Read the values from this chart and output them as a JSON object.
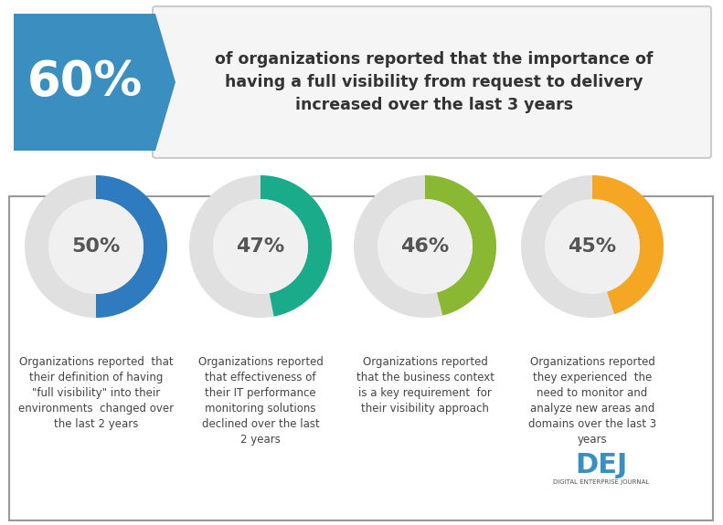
{
  "header_pct": "60%",
  "header_bg": "#3a8fc0",
  "header_text": "of organizations reported that the importance of\nhaving a full visibility from request to delivery\nincreased over the last 3 years",
  "header_text_color": "#333333",
  "donut_data": [
    {
      "pct": 50,
      "value": 50,
      "color": "#2e7bbf",
      "label": "Organizations reported  that\ntheir definition of having\n\"full visibility\" into their\nenvironments  changed over\nthe last 2 years"
    },
    {
      "pct": 47,
      "value": 47,
      "color": "#1aab8b",
      "label": "Organizations reported\nthat effectiveness of\ntheir IT performance\nmonitoring solutions\ndeclined over the last\n2 years"
    },
    {
      "pct": 46,
      "value": 46,
      "color": "#8ab832",
      "label": "Organizations reported\nthat the business context\nis a key requirement  for\ntheir visibility approach"
    },
    {
      "pct": 45,
      "value": 45,
      "color": "#f5a623",
      "label": "Organizations reported\nthey experienced  the\nneed to monitor and\nanalyze new areas and\ndomains over the last 3\nyears"
    }
  ],
  "bg_color": "#ffffff",
  "box_border_color": "#cccccc",
  "donut_bg": "#e0e0e0",
  "pct_font_size": 16,
  "label_font_size": 8.5
}
